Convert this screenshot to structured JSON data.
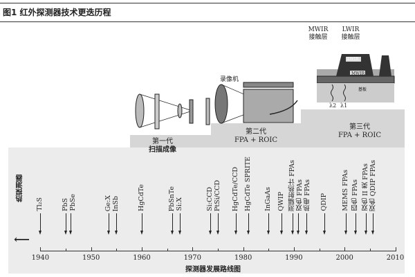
{
  "figure": {
    "title": "图1  红外探测器技术更迭历程",
    "caption": "探测器发展路线图"
  },
  "generations": [
    {
      "name": "第一代",
      "desc": "扫描成像"
    },
    {
      "name": "第二代",
      "desc": "FPA + ROIC",
      "device_label": "录像机"
    },
    {
      "name": "第三代",
      "desc": "FPA + ROIC",
      "labels": {
        "mwir_contact": "MWIR\n接触层",
        "lwir_contact": "LWIR\n接触层",
        "lwir": "LWIR",
        "mwir": "MWIR",
        "substrate": "基板",
        "lambda2": "λ2",
        "lambda1": "λ1"
      }
    }
  ],
  "thermal_detector_label": "热探测器",
  "axis": {
    "ticks": [
      1940,
      1950,
      1960,
      1970,
      1980,
      1990,
      2000,
      2010
    ],
    "range": [
      1940,
      2010
    ]
  },
  "events": [
    {
      "label": "Tl₂S",
      "year": 1940
    },
    {
      "label": "PbS",
      "year": 1945
    },
    {
      "label": "PbSe",
      "year": 1946
    },
    {
      "label": "Ge:X",
      "year": 1953.5
    },
    {
      "label": "InSb",
      "year": 1955
    },
    {
      "label": "HgCdTe",
      "year": 1960
    },
    {
      "label": "PbSnTe",
      "year": 1966
    },
    {
      "label": "Si:X",
      "year": 1967.5
    },
    {
      "label": "Si:CCD",
      "year": 1973.5
    },
    {
      "label": "PtSi/CCD",
      "year": 1975
    },
    {
      "label": "HgCdTe/CCD",
      "year": 1978.5
    },
    {
      "label": "HgCdTe SPRITE",
      "year": 1981
    },
    {
      "label": "InGaAs",
      "year": 1985
    },
    {
      "label": "QWIP",
      "year": 1987.5
    },
    {
      "label": "测辐射热计 FPAs",
      "year": 1989.7
    },
    {
      "label": "双色 FPAs",
      "year": 1990.8
    },
    {
      "label": "热电 FPAs",
      "year": 1992.5
    },
    {
      "label": "QDIP",
      "year": 1996
    },
    {
      "label": "MEMS FPAs",
      "year": 2000.3
    },
    {
      "label": "四色 FPAs",
      "year": 2002.2
    },
    {
      "label": "双色 II 类 FPAs",
      "year": 2004.2
    },
    {
      "label": "双色 QDIP FPAs",
      "year": 2005.6
    }
  ]
}
